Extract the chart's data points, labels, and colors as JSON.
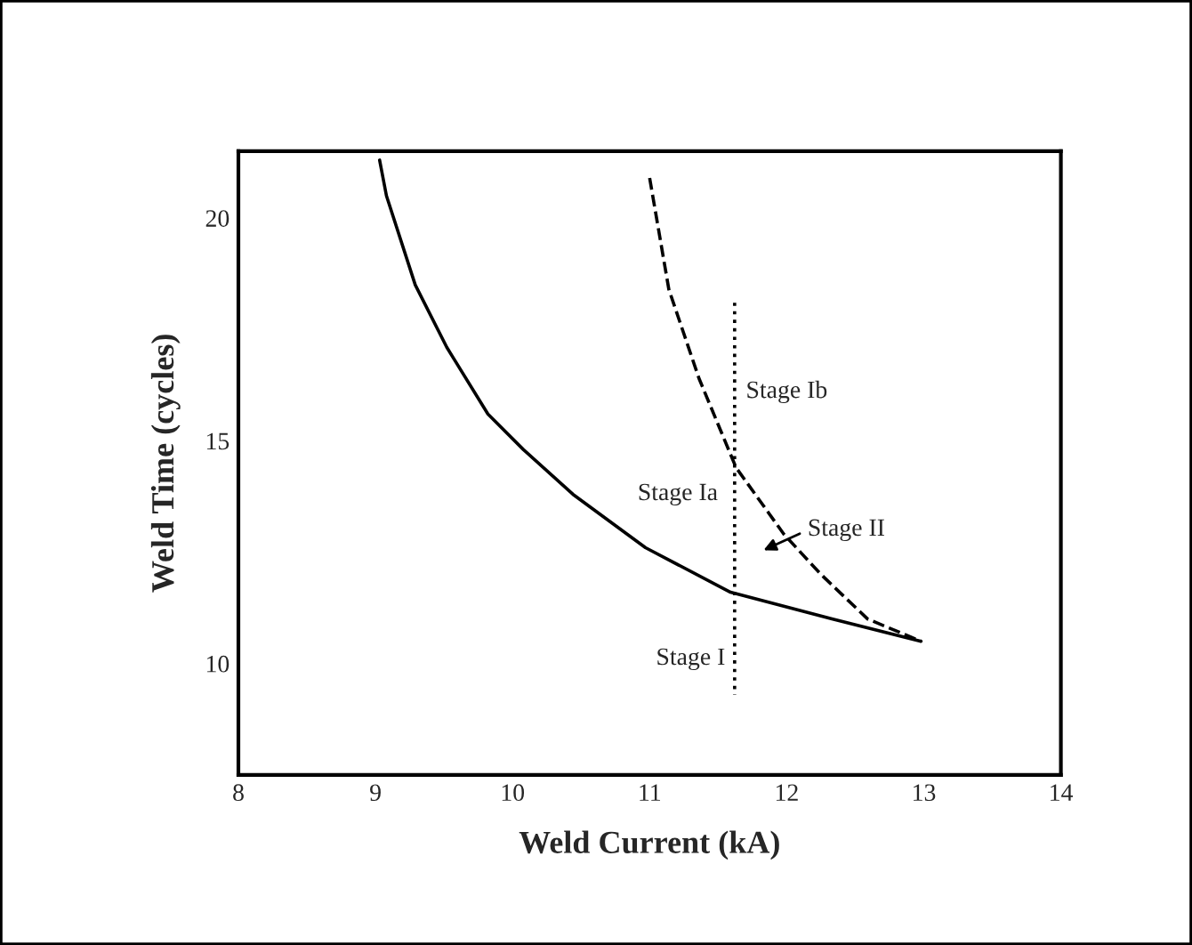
{
  "chart_data": {
    "type": "line",
    "xlabel": "Weld Current (kA)",
    "ylabel": "Weld Time (cycles)",
    "xlim": [
      8,
      14
    ],
    "xticks": [
      8,
      9,
      10,
      11,
      12,
      13,
      14
    ],
    "ylim": [
      7.5,
      21.5
    ],
    "yticks": [
      10,
      15,
      20
    ],
    "grid": false,
    "marker": "none",
    "series": [
      {
        "color": "#000000",
        "line_style": "solid",
        "x": [
          9.03,
          9.08,
          9.29,
          9.52,
          9.82,
          10.08,
          10.44,
          10.97,
          11.59,
          12.33,
          12.98
        ],
        "values": [
          21.3,
          20.5,
          18.5,
          17.1,
          15.6,
          14.8,
          13.8,
          12.6,
          11.6,
          11.0,
          10.5
        ]
      },
      {
        "color": "#000000",
        "line_style": "dashed",
        "x": [
          11.0,
          11.14,
          11.36,
          11.63,
          11.98,
          12.25,
          12.59,
          12.98
        ],
        "values": [
          20.9,
          18.4,
          16.4,
          14.4,
          12.9,
          12.0,
          11.0,
          10.5
        ]
      },
      {
        "color": "#000000",
        "line_style": "dotted",
        "x": [
          11.62,
          11.62
        ],
        "values": [
          18.1,
          9.3
        ]
      }
    ],
    "annotations": [
      "Stage Ib",
      "Stage Ia",
      "Stage II",
      "Stage I"
    ]
  }
}
